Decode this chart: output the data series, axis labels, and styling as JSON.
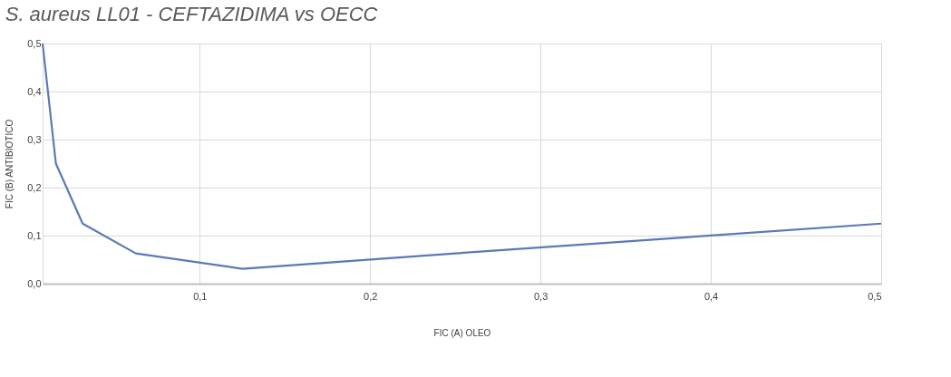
{
  "chart_data": {
    "type": "line",
    "title": "S. aureus LL01 - CEFTAZIDIMA vs OECC",
    "xlabel": "FIC (A) OLEO",
    "ylabel": "FIC (B) ANTIBIOTICO",
    "x": [
      0.0078,
      0.0156,
      0.0313,
      0.0625,
      0.125,
      0.25,
      0.5
    ],
    "series": [
      {
        "color": "#5b79b8",
        "values": [
          0.5,
          0.25,
          0.125,
          0.063,
          0.031,
          0.063,
          0.125
        ]
      }
    ],
    "xlim": [
      0.0078,
      0.5
    ],
    "ylim": [
      0,
      0.5
    ],
    "xticks": [
      {
        "value": 0.1,
        "label": "0,1"
      },
      {
        "value": 0.2,
        "label": "0,2"
      },
      {
        "value": 0.3,
        "label": "0,3"
      },
      {
        "value": 0.4,
        "label": "0,4"
      },
      {
        "value": 0.5,
        "label": "0,5"
      }
    ],
    "yticks": [
      {
        "value": 0,
        "label": "0,0"
      },
      {
        "value": 0.1,
        "label": "0,1"
      },
      {
        "value": 0.2,
        "label": "0,2"
      },
      {
        "value": 0.3,
        "label": "0,3"
      },
      {
        "value": 0.4,
        "label": "0,4"
      },
      {
        "value": 0.5,
        "label": "0,5"
      }
    ],
    "grid": true,
    "marker": "none",
    "line_style": "solid"
  }
}
